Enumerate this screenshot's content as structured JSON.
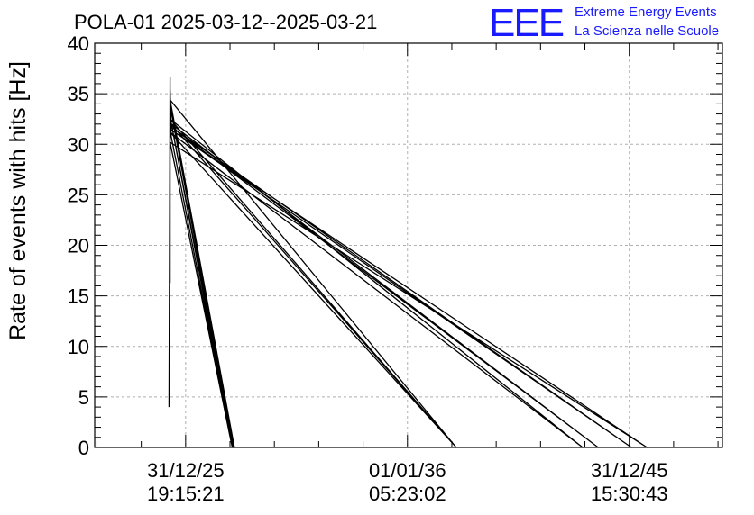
{
  "chart_data": {
    "type": "line",
    "title": "POLA-01 2025-03-12--2025-03-21",
    "ylabel": "Rate of events with hits [Hz]",
    "xlabel": "",
    "ylim": [
      0,
      40
    ],
    "yticks": [
      0,
      5,
      10,
      15,
      20,
      25,
      30,
      35,
      40
    ],
    "xlim": [
      -0.41,
      2.42
    ],
    "xticks": [
      {
        "value": 0,
        "date": "31/12/25",
        "time": "19:15:21"
      },
      {
        "value": 1,
        "date": "01/01/36",
        "time": "05:23:02"
      },
      {
        "value": 2,
        "date": "31/12/45",
        "time": "15:30:43"
      }
    ],
    "grid": true,
    "series": [
      {
        "values": [
          [
            -0.075,
            4
          ],
          [
            -0.07,
            36.6
          ],
          [
            -0.07,
            16.3
          ],
          [
            -0.07,
            35.5
          ],
          [
            -0.065,
            30.8
          ],
          [
            0.21,
            0
          ],
          [
            -0.07,
            32.7
          ],
          [
            0.215,
            0
          ],
          [
            -0.07,
            33.8
          ],
          [
            0.22,
            0
          ],
          [
            -0.07,
            34.4
          ],
          [
            1.22,
            0
          ],
          [
            -0.07,
            32.5
          ],
          [
            1.79,
            0
          ],
          [
            -0.07,
            31.2
          ],
          [
            1.22,
            0
          ],
          [
            -0.07,
            32.1
          ],
          [
            1.86,
            0
          ],
          [
            -0.07,
            31.8
          ],
          [
            2.01,
            0
          ],
          [
            -0.07,
            31.5
          ],
          [
            2.08,
            0
          ],
          [
            -0.07,
            30.2
          ],
          [
            0.21,
            0
          ]
        ]
      }
    ]
  },
  "logo": {
    "mark": "EEE",
    "line1": "Extreme Energy Events",
    "line2": "La Scienza nelle Scuole",
    "color": "#1a1aff"
  }
}
